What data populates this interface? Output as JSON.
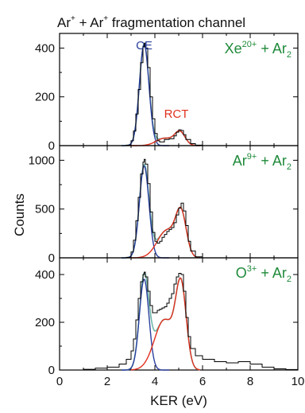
{
  "figure": {
    "title_main": "Ar",
    "title_sup1": "+",
    "title_mid": " + Ar",
    "title_sup2": "+",
    "title_end": " fragmentation channel",
    "xlabel": "KER (eV)",
    "ylabel": "Counts"
  },
  "colors": {
    "ce": "#2b3f9e",
    "rct": "#e0301e",
    "total_fit": "#6fb6a8",
    "data": "#000000",
    "label_green": "#1f8a3a"
  },
  "chart_data": [
    {
      "type": "line",
      "panel": "top",
      "label_main": "Xe",
      "label_sup": "20+",
      "label_rest": " + Ar",
      "label_sub": "2",
      "annotations": [
        "CE",
        "RCT"
      ],
      "ylim": [
        0,
        460
      ],
      "yticks": [
        0,
        200,
        400
      ],
      "xlim": [
        0,
        10
      ],
      "series": [
        {
          "name": "CE",
          "kind": "gaussian",
          "amplitude": 415,
          "center": 3.55,
          "sigma": 0.2
        },
        {
          "name": "RCT",
          "kind": "two-gaussian",
          "components": [
            {
              "amplitude": 30,
              "center": 4.4,
              "sigma": 0.35
            },
            {
              "amplitude": 55,
              "center": 5.05,
              "sigma": 0.22
            }
          ]
        },
        {
          "name": "data",
          "kind": "histogram",
          "points": [
            [
              2.6,
              0
            ],
            [
              2.8,
              2
            ],
            [
              3.0,
              20
            ],
            [
              3.1,
              60
            ],
            [
              3.2,
              130
            ],
            [
              3.3,
              230
            ],
            [
              3.4,
              340
            ],
            [
              3.5,
              405
            ],
            [
              3.55,
              420
            ],
            [
              3.6,
              400
            ],
            [
              3.7,
              320
            ],
            [
              3.8,
              200
            ],
            [
              3.9,
              110
            ],
            [
              4.0,
              50
            ],
            [
              4.1,
              20
            ],
            [
              4.2,
              15
            ],
            [
              4.4,
              25
            ],
            [
              4.6,
              28
            ],
            [
              4.8,
              40
            ],
            [
              4.9,
              55
            ],
            [
              5.0,
              65
            ],
            [
              5.1,
              62
            ],
            [
              5.2,
              45
            ],
            [
              5.3,
              25
            ],
            [
              5.5,
              8
            ],
            [
              5.7,
              2
            ],
            [
              6.0,
              0
            ],
            [
              7.0,
              0
            ],
            [
              9.0,
              0
            ]
          ]
        }
      ]
    },
    {
      "type": "line",
      "panel": "middle",
      "label_main": "Ar",
      "label_sup": "9+",
      "label_rest": " + Ar",
      "label_sub": "2",
      "ylim": [
        0,
        1150
      ],
      "yticks": [
        0,
        500,
        1000
      ],
      "xlim": [
        0,
        10
      ],
      "series": [
        {
          "name": "CE",
          "kind": "gaussian",
          "amplitude": 940,
          "center": 3.55,
          "sigma": 0.2
        },
        {
          "name": "RCT",
          "kind": "two-gaussian",
          "components": [
            {
              "amplitude": 280,
              "center": 4.5,
              "sigma": 0.4
            },
            {
              "amplitude": 420,
              "center": 5.1,
              "sigma": 0.22
            }
          ]
        },
        {
          "name": "data",
          "kind": "histogram",
          "points": [
            [
              2.6,
              0
            ],
            [
              2.8,
              5
            ],
            [
              3.0,
              60
            ],
            [
              3.1,
              180
            ],
            [
              3.2,
              380
            ],
            [
              3.3,
              620
            ],
            [
              3.4,
              860
            ],
            [
              3.5,
              980
            ],
            [
              3.55,
              1010
            ],
            [
              3.6,
              960
            ],
            [
              3.7,
              760
            ],
            [
              3.8,
              470
            ],
            [
              3.9,
              260
            ],
            [
              4.0,
              170
            ],
            [
              4.1,
              150
            ],
            [
              4.2,
              170
            ],
            [
              4.3,
              210
            ],
            [
              4.4,
              240
            ],
            [
              4.5,
              270
            ],
            [
              4.6,
              290
            ],
            [
              4.7,
              310
            ],
            [
              4.8,
              360
            ],
            [
              4.9,
              440
            ],
            [
              5.0,
              510
            ],
            [
              5.1,
              560
            ],
            [
              5.2,
              480
            ],
            [
              5.3,
              330
            ],
            [
              5.4,
              170
            ],
            [
              5.5,
              70
            ],
            [
              5.7,
              10
            ],
            [
              6.0,
              0
            ],
            [
              9.0,
              0
            ]
          ]
        }
      ]
    },
    {
      "type": "line",
      "panel": "bottom",
      "label_main": "O",
      "label_sup": "3+",
      "label_rest": " + Ar",
      "label_sub": "2",
      "xlabel": "KER (eV)",
      "ylim": [
        0,
        470
      ],
      "yticks": [
        0,
        200,
        400
      ],
      "xlim": [
        0,
        10
      ],
      "xticks": [
        0,
        2,
        4,
        6,
        8,
        10
      ],
      "series": [
        {
          "name": "CE",
          "kind": "gaussian",
          "amplitude": 380,
          "center": 3.55,
          "sigma": 0.2
        },
        {
          "name": "RCT",
          "kind": "two-gaussian",
          "components": [
            {
              "amplitude": 210,
              "center": 4.4,
              "sigma": 0.42
            },
            {
              "amplitude": 330,
              "center": 5.1,
              "sigma": 0.22
            }
          ]
        },
        {
          "name": "data",
          "kind": "histogram",
          "points": [
            [
              0.4,
              0
            ],
            [
              1.0,
              3
            ],
            [
              1.5,
              8
            ],
            [
              2.0,
              12
            ],
            [
              2.5,
              25
            ],
            [
              2.8,
              45
            ],
            [
              3.0,
              80
            ],
            [
              3.1,
              130
            ],
            [
              3.2,
              210
            ],
            [
              3.3,
              300
            ],
            [
              3.4,
              370
            ],
            [
              3.5,
              400
            ],
            [
              3.55,
              410
            ],
            [
              3.6,
              390
            ],
            [
              3.7,
              330
            ],
            [
              3.8,
              270
            ],
            [
              3.9,
              240
            ],
            [
              4.0,
              240
            ],
            [
              4.1,
              250
            ],
            [
              4.2,
              255
            ],
            [
              4.3,
              260
            ],
            [
              4.4,
              265
            ],
            [
              4.5,
              280
            ],
            [
              4.6,
              300
            ],
            [
              4.7,
              320
            ],
            [
              4.8,
              360
            ],
            [
              4.9,
              390
            ],
            [
              5.0,
              405
            ],
            [
              5.1,
              400
            ],
            [
              5.2,
              330
            ],
            [
              5.3,
              220
            ],
            [
              5.4,
              140
            ],
            [
              5.5,
              90
            ],
            [
              5.7,
              60
            ],
            [
              6.0,
              45
            ],
            [
              6.5,
              35
            ],
            [
              7.0,
              30
            ],
            [
              7.5,
              35
            ],
            [
              8.0,
              25
            ],
            [
              8.5,
              12
            ],
            [
              9.0,
              5
            ],
            [
              9.5,
              2
            ],
            [
              10.0,
              0
            ]
          ]
        }
      ]
    }
  ]
}
